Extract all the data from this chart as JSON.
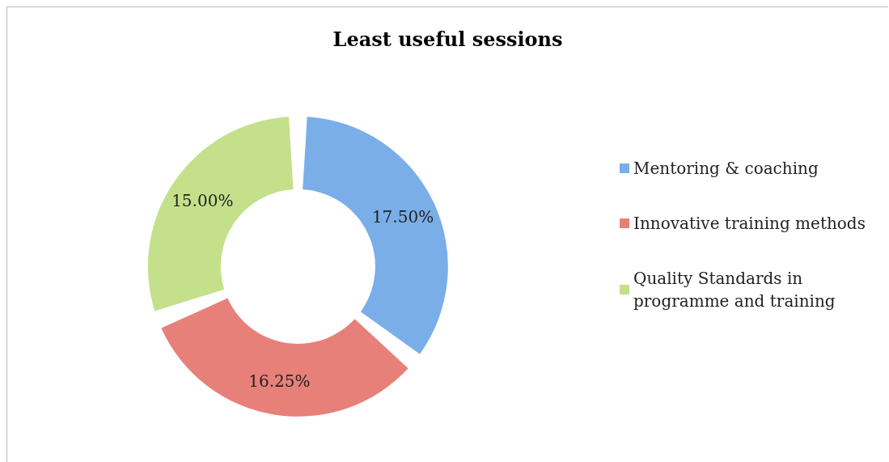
{
  "chart_data": {
    "type": "donut",
    "title": "Least useful sessions",
    "categories": [
      "Mentoring & coaching",
      "Innovative training methods",
      "Quality Standards in programme and training"
    ],
    "values": [
      17.5,
      16.25,
      15.0
    ],
    "value_labels": [
      "17.50%",
      "16.25%",
      "15.00%"
    ],
    "colors": [
      "#7aaee8",
      "#e8807a",
      "#c4e08a"
    ],
    "legend": "right"
  }
}
